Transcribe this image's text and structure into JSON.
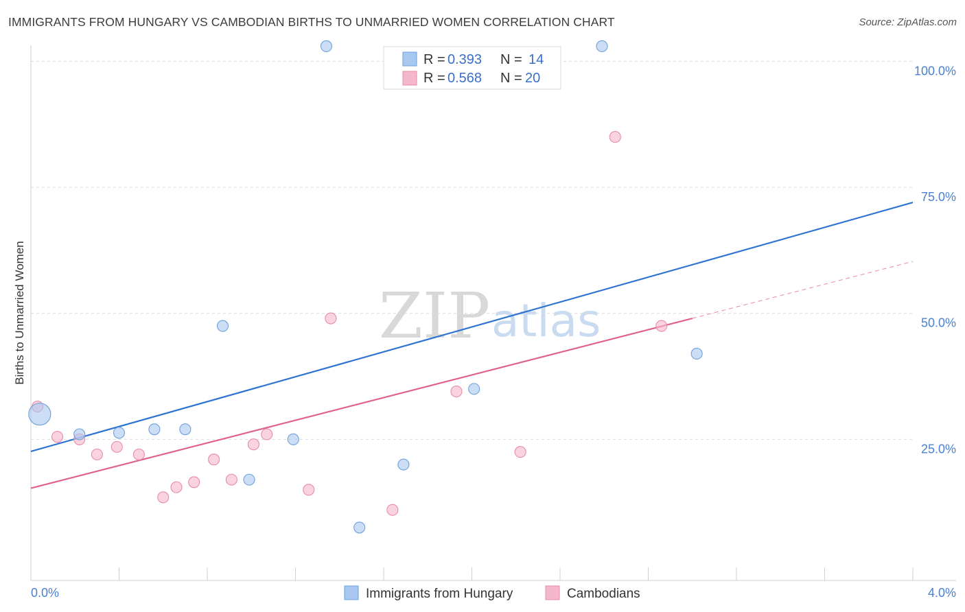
{
  "title": "IMMIGRANTS FROM HUNGARY VS CAMBODIAN BIRTHS TO UNMARRIED WOMEN CORRELATION CHART",
  "source": "Source: ZipAtlas.com",
  "watermark": {
    "zip": "ZIP",
    "atlas": "atlas"
  },
  "chart_data": {
    "type": "scatter",
    "ylabel": "Births to Unmarried Women",
    "xlim": [
      0,
      4
    ],
    "ylim": [
      0,
      104
    ],
    "x_tick_labels": [
      {
        "value": 0,
        "label": "0.0%"
      },
      {
        "value": 4,
        "label": "4.0%"
      }
    ],
    "y_tick_labels": [
      {
        "value": 25,
        "label": "25.0%"
      },
      {
        "value": 50,
        "label": "50.0%"
      },
      {
        "value": 75,
        "label": "75.0%"
      },
      {
        "value": 100,
        "label": "100.0%"
      }
    ],
    "grid": "horizontal dashed",
    "legend_stats": [
      {
        "r_label": "R =",
        "r_value": "0.393",
        "n_label": "N =",
        "n_value": "14",
        "color": "#a9c8f0"
      },
      {
        "r_label": "R =",
        "r_value": "0.568",
        "n_label": "N =",
        "n_value": "20",
        "color": "#f5b8cb"
      }
    ],
    "series": [
      {
        "name": "Immigrants from Hungary",
        "color": "#a9c8f0",
        "stroke": "#6d9fdc",
        "line_color": "#2f74d0",
        "trend": {
          "x": [
            0,
            4
          ],
          "y": [
            22.6,
            72.0
          ]
        },
        "points": [
          {
            "x": 0.04,
            "y": 30.0,
            "big": true
          },
          {
            "x": 0.22,
            "y": 26.0
          },
          {
            "x": 0.4,
            "y": 26.3
          },
          {
            "x": 0.56,
            "y": 27.0
          },
          {
            "x": 0.7,
            "y": 27.0
          },
          {
            "x": 0.87,
            "y": 47.5
          },
          {
            "x": 0.99,
            "y": 17.0
          },
          {
            "x": 1.19,
            "y": 25.0
          },
          {
            "x": 1.34,
            "y": 103.0
          },
          {
            "x": 1.49,
            "y": 7.5
          },
          {
            "x": 1.69,
            "y": 20.0
          },
          {
            "x": 2.01,
            "y": 35.0
          },
          {
            "x": 2.59,
            "y": 103.0
          },
          {
            "x": 3.02,
            "y": 42.0
          }
        ]
      },
      {
        "name": "Cambodians",
        "color": "#f5b8cb",
        "stroke": "#e88aa8",
        "line_color": "#e0628b",
        "trend": {
          "x": [
            0,
            3.0
          ],
          "y": [
            15.3,
            49.0
          ]
        },
        "trend_dashed": {
          "x": [
            3.0,
            4.0
          ],
          "y": [
            49.0,
            60.3
          ]
        },
        "points": [
          {
            "x": 0.03,
            "y": 31.5
          },
          {
            "x": 0.12,
            "y": 25.5
          },
          {
            "x": 0.22,
            "y": 25.0
          },
          {
            "x": 0.3,
            "y": 22.0
          },
          {
            "x": 0.39,
            "y": 23.5
          },
          {
            "x": 0.49,
            "y": 22.0
          },
          {
            "x": 0.6,
            "y": 13.5
          },
          {
            "x": 0.66,
            "y": 15.5
          },
          {
            "x": 0.74,
            "y": 16.5
          },
          {
            "x": 0.83,
            "y": 21.0
          },
          {
            "x": 0.91,
            "y": 17.0
          },
          {
            "x": 1.01,
            "y": 24.0
          },
          {
            "x": 1.07,
            "y": 26.0
          },
          {
            "x": 1.26,
            "y": 15.0
          },
          {
            "x": 1.36,
            "y": 49.0
          },
          {
            "x": 1.64,
            "y": 11.0
          },
          {
            "x": 1.93,
            "y": 34.5
          },
          {
            "x": 2.22,
            "y": 22.5
          },
          {
            "x": 2.65,
            "y": 85.0
          },
          {
            "x": 2.86,
            "y": 47.5
          }
        ]
      }
    ]
  }
}
